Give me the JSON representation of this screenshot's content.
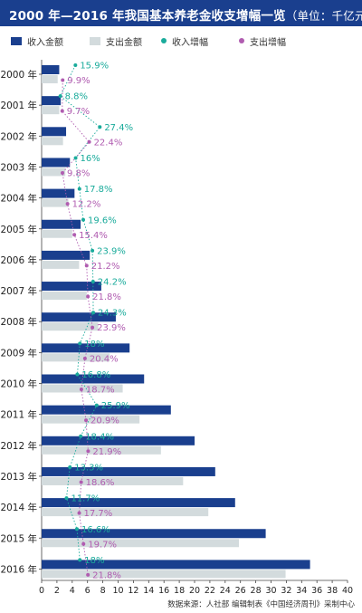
{
  "header": {
    "title_main": "2000 年—2016 年我国基本养老金收支增幅一览",
    "title_unit": "（单位：千亿元）"
  },
  "legend": [
    {
      "label": "收入金额",
      "color": "#1a3f8e",
      "kind": "bar"
    },
    {
      "label": "支出金额",
      "color": "#d3dbdd",
      "kind": "bar"
    },
    {
      "label": "收入增幅",
      "color": "#1aab9b",
      "kind": "dot"
    },
    {
      "label": "支出增幅",
      "color": "#b05cb0",
      "kind": "dot"
    }
  ],
  "footer": {
    "source": "数据来源：人社部  编辑制表《中国经济周刊》采制中心"
  },
  "chart_data": {
    "type": "bar",
    "orientation": "horizontal",
    "categories": [
      "2000 年",
      "2001 年",
      "2002 年",
      "2003 年",
      "2004 年",
      "2005 年",
      "2006 年",
      "2007 年",
      "2008 年",
      "2009 年",
      "2010 年",
      "2011 年",
      "2012 年",
      "2013 年",
      "2014 年",
      "2015 年",
      "2016 年"
    ],
    "xlim": [
      0,
      40
    ],
    "xticks": [
      0,
      2,
      4,
      6,
      8,
      10,
      12,
      14,
      16,
      18,
      20,
      22,
      24,
      26,
      28,
      30,
      32,
      34,
      36,
      38,
      40
    ],
    "series": [
      {
        "name": "收入金额",
        "color": "#1a3f8e",
        "values": [
          2.3,
          2.5,
          3.2,
          3.7,
          4.3,
          5.1,
          6.3,
          7.8,
          9.7,
          11.5,
          13.4,
          16.9,
          20.0,
          22.7,
          25.3,
          29.3,
          35.1
        ]
      },
      {
        "name": "支出金额",
        "color": "#d3dbdd",
        "values": [
          2.1,
          2.3,
          2.8,
          3.1,
          3.5,
          4.0,
          4.9,
          5.9,
          7.4,
          8.9,
          10.6,
          12.8,
          15.6,
          18.5,
          21.8,
          25.8,
          31.9
        ]
      },
      {
        "name": "收入增幅",
        "color": "#1aab9b",
        "values": [
          15.9,
          8.8,
          27.4,
          16,
          17.8,
          19.6,
          23.9,
          24.2,
          24.3,
          18,
          16.8,
          25.9,
          18.4,
          13.3,
          11.7,
          16.6,
          18
        ],
        "labels": [
          "15.9%",
          "8.8%",
          "27.4%",
          "16%",
          "17.8%",
          "19.6%",
          "23.9%",
          "24.2%",
          "24.3%",
          "18%",
          "16.8%",
          "25.9%",
          "18.4%",
          "13.3%",
          "11.7%",
          "16.6%",
          "18%"
        ]
      },
      {
        "name": "支出增幅",
        "color": "#b05cb0",
        "values": [
          9.9,
          9.7,
          22.4,
          9.8,
          12.2,
          15.4,
          21.2,
          21.8,
          23.9,
          20.4,
          18.7,
          20.9,
          21.9,
          18.6,
          17.7,
          19.7,
          21.8
        ],
        "labels": [
          "9.9%",
          "9.7%",
          "22.4%",
          "9.8%",
          "12.2%",
          "15.4%",
          "21.2%",
          "21.8%",
          "23.9%",
          "20.4%",
          "18.7%",
          "20.9%",
          "21.9%",
          "18.6%",
          "17.7%",
          "19.7%",
          "21.8%"
        ]
      }
    ],
    "title": "2000 年—2016 年我国基本养老金收支增幅一览",
    "xlabel": "",
    "ylabel": "",
    "grid": false,
    "legend_position": "top"
  }
}
